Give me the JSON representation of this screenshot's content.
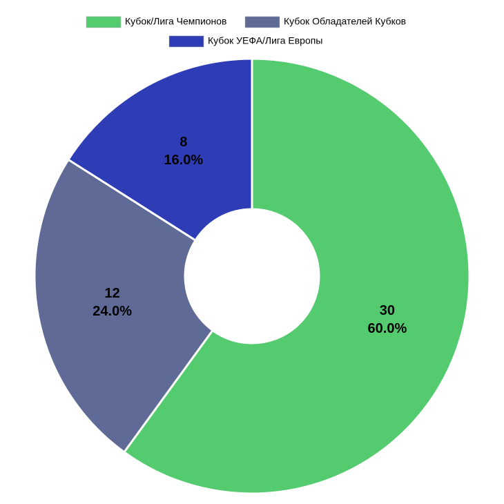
{
  "chart_data": {
    "type": "donut",
    "categories": [
      "Кубок/Лига Чемпионов",
      "Кубок Обладателей Кубков",
      "Кубок УЕФА/Лига Европы"
    ],
    "values": [
      30,
      12,
      8
    ],
    "percent_labels": [
      "60.0%",
      "24.0%",
      "16.0%"
    ],
    "colors": [
      "#55cb70",
      "#5f6b96",
      "#2e3db5"
    ],
    "legend": "top"
  }
}
